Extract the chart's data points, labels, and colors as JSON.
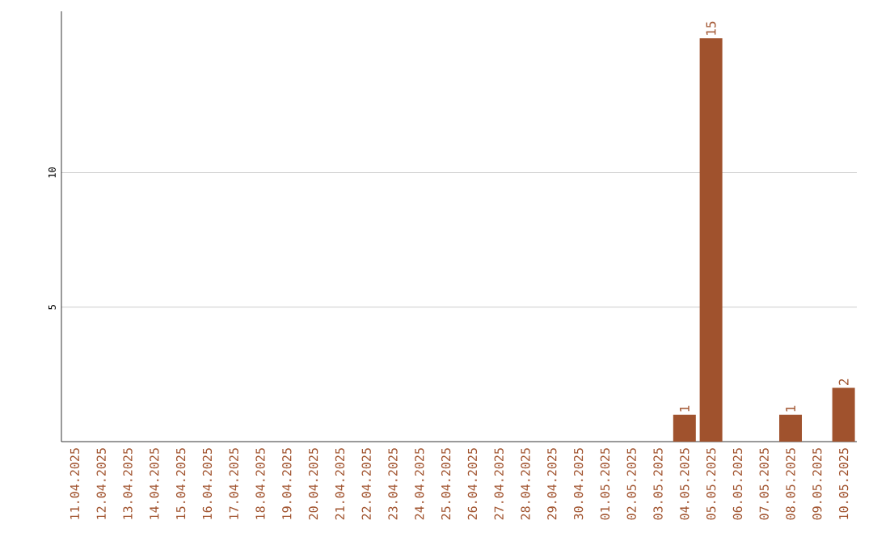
{
  "chart_data": {
    "type": "bar",
    "categories": [
      "11.04.2025",
      "12.04.2025",
      "13.04.2025",
      "14.04.2025",
      "15.04.2025",
      "16.04.2025",
      "17.04.2025",
      "18.04.2025",
      "19.04.2025",
      "20.04.2025",
      "21.04.2025",
      "22.04.2025",
      "23.04.2025",
      "24.04.2025",
      "25.04.2025",
      "26.04.2025",
      "27.04.2025",
      "28.04.2025",
      "29.04.2025",
      "30.04.2025",
      "01.05.2025",
      "02.05.2025",
      "03.05.2025",
      "04.05.2025",
      "05.05.2025",
      "06.05.2025",
      "07.05.2025",
      "08.05.2025",
      "09.05.2025",
      "10.05.2025"
    ],
    "values": [
      0,
      0,
      0,
      0,
      0,
      0,
      0,
      0,
      0,
      0,
      0,
      0,
      0,
      0,
      0,
      0,
      0,
      0,
      0,
      0,
      0,
      0,
      0,
      1,
      15,
      0,
      0,
      1,
      0,
      2
    ],
    "value_labels": [
      null,
      null,
      null,
      null,
      null,
      null,
      null,
      null,
      null,
      null,
      null,
      null,
      null,
      null,
      null,
      null,
      null,
      null,
      null,
      null,
      null,
      null,
      null,
      "1",
      "15",
      null,
      null,
      "1",
      null,
      "2"
    ],
    "color": "#a0522d",
    "ylim": [
      0,
      16
    ],
    "yticks": [
      5,
      10
    ],
    "grid": "y"
  }
}
